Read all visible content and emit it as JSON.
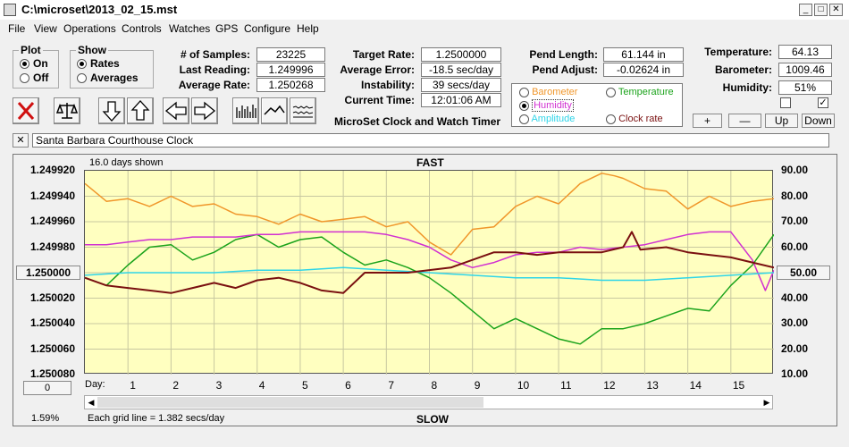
{
  "window": {
    "title": "C:\\microset\\2013_02_15.mst",
    "controls": {
      "minimize": "_",
      "maximize": "□",
      "close": "✕"
    }
  },
  "menu": [
    "File",
    "View",
    "Operations",
    "Controls",
    "Watches",
    "GPS",
    "Configure",
    "Help"
  ],
  "plot_group": {
    "title": "Plot",
    "options": [
      "On",
      "Off"
    ],
    "selected": "On"
  },
  "show_group": {
    "title": "Show",
    "options": [
      "Rates",
      "Averages"
    ],
    "selected": "Rates"
  },
  "stats": {
    "samples_label": "# of Samples:",
    "samples": "23225",
    "last_label": "Last Reading:",
    "last": "1.249996",
    "avg_label": "Average Rate:",
    "avg": "1.250268",
    "target_label": "Target Rate:",
    "target": "1.2500000",
    "err_label": "Average Error:",
    "err": "-18.5 sec/day",
    "inst_label": "Instability:",
    "inst": "39 secs/day",
    "time_label": "Current Time:",
    "time": "12:01:06 AM",
    "pendlen_label": "Pend Length:",
    "pendlen": "61.144 in",
    "pendadj_label": "Pend Adjust:",
    "pendadj": "-0.02624 in",
    "temp_label": "Temperature:",
    "temp": "64.13",
    "baro_label": "Barometer:",
    "baro": "1009.46",
    "hum_label": "Humidity:",
    "hum": "51%"
  },
  "app_caption": "MicroSet Clock and Watch Timer",
  "sensors": [
    {
      "name": "Barometer",
      "color": "#f0962a",
      "selected": false
    },
    {
      "name": "Temperature",
      "color": "#1ba31b",
      "selected": false
    },
    {
      "name": "Humidity",
      "color": "#d130d1",
      "selected": true
    },
    {
      "name": "Amplitude",
      "color": "#2fd5e8",
      "selected": false
    },
    {
      "name": "Clock rate",
      "color": "#7a1010",
      "selected": false
    }
  ],
  "sensor_buttons": {
    "plus": "+",
    "minus": "—",
    "up": "Up",
    "down": "Down"
  },
  "clock_name": "Santa Barbara Courthouse Clock",
  "chart_header": {
    "days_shown": "16.0 days shown",
    "fast": "FAST",
    "slow": "SLOW",
    "center_left": "1.250000",
    "center_right": "50.00",
    "left_bottom_btn": "0",
    "percent": "1.59%",
    "grid_note": "Each grid line = 1.382 secs/day",
    "day_label": "Day:"
  },
  "chart_data": {
    "type": "line",
    "x_range": [
      0,
      16
    ],
    "x_ticks": [
      "1",
      "2",
      "3",
      "4",
      "5",
      "6",
      "7",
      "8",
      "9",
      "10",
      "11",
      "12",
      "13",
      "14",
      "15"
    ],
    "left_axis": {
      "ticks": [
        "1.249920",
        "1.249940",
        "1.249960",
        "1.249980",
        "1.250000",
        "1.250020",
        "1.250040",
        "1.250060",
        "1.250080"
      ],
      "range": [
        1.24992,
        1.25008
      ],
      "inverted": true
    },
    "right_axis": {
      "ticks": [
        "90.00",
        "80.00",
        "70.00",
        "60.00",
        "50.00",
        "40.00",
        "30.00",
        "20.00",
        "10.00"
      ],
      "range": [
        10,
        90
      ]
    },
    "series": [
      {
        "name": "Barometer",
        "color": "#f0962a",
        "axis": "right",
        "x": [
          0,
          0.5,
          1,
          1.5,
          2,
          2.5,
          3,
          3.5,
          4,
          4.5,
          5,
          5.5,
          6,
          6.5,
          7,
          7.5,
          8,
          8.5,
          9,
          9.5,
          10,
          10.5,
          11,
          11.5,
          12,
          12.3,
          12.5,
          13,
          13.5,
          14,
          14.5,
          15,
          15.5,
          16
        ],
        "y": [
          85,
          78,
          79,
          76,
          80,
          76,
          77,
          73,
          72,
          69,
          73,
          70,
          71,
          72,
          68,
          70,
          62,
          57,
          67,
          68,
          76,
          80,
          77,
          85,
          89,
          88,
          87,
          83,
          82,
          75,
          80,
          76,
          78,
          79
        ]
      },
      {
        "name": "Temperature",
        "color": "#1ba31b",
        "axis": "right",
        "x": [
          0,
          0.5,
          1,
          1.5,
          2,
          2.5,
          3,
          3.5,
          4,
          4.5,
          5,
          5.5,
          6,
          6.5,
          7,
          7.5,
          8,
          8.5,
          9,
          9.5,
          10,
          10.5,
          11,
          11.5,
          12,
          12.5,
          13,
          13.5,
          14,
          14.5,
          15,
          15.5,
          16
        ],
        "y": [
          48,
          45,
          53,
          60,
          61,
          55,
          58,
          63,
          65,
          60,
          63,
          64,
          58,
          53,
          55,
          52,
          48,
          42,
          35,
          28,
          32,
          28,
          24,
          22,
          28,
          28,
          30,
          33,
          36,
          35,
          45,
          53,
          65
        ]
      },
      {
        "name": "Humidity",
        "color": "#d130d1",
        "axis": "right",
        "x": [
          0,
          0.5,
          1,
          1.5,
          2,
          2.5,
          3,
          3.5,
          4,
          4.5,
          5,
          5.5,
          6,
          6.5,
          7,
          7.5,
          8,
          8.5,
          9,
          9.5,
          10,
          10.5,
          11,
          11.5,
          12,
          12.5,
          13,
          13.5,
          14,
          14.5,
          15,
          15.5,
          15.8,
          16
        ],
        "y": [
          61,
          61,
          62,
          63,
          63,
          64,
          64,
          64,
          65,
          65,
          66,
          66,
          66,
          66,
          65,
          63,
          60,
          55,
          52,
          54,
          57,
          58,
          58,
          60,
          59,
          60,
          61,
          63,
          65,
          66,
          66,
          55,
          43,
          51
        ]
      },
      {
        "name": "Amplitude",
        "color": "#2fd5e8",
        "axis": "right",
        "x": [
          0,
          1,
          2,
          3,
          4,
          5,
          6,
          7,
          8,
          9,
          10,
          11,
          12,
          13,
          14,
          15,
          16
        ],
        "y": [
          49,
          50,
          50,
          50,
          51,
          51,
          52,
          51,
          50,
          49,
          48,
          48,
          47,
          47,
          48,
          49,
          50
        ]
      },
      {
        "name": "Clock rate",
        "color": "#7a1010",
        "axis": "left",
        "x": [
          0,
          0.5,
          1,
          1.5,
          2,
          2.5,
          3,
          3.5,
          4,
          4.5,
          5,
          5.5,
          6,
          6.5,
          7,
          7.5,
          8,
          8.5,
          9,
          9.5,
          10,
          10.5,
          11,
          11.5,
          12,
          12.5,
          12.7,
          12.9,
          13.5,
          14,
          14.5,
          15,
          15.5,
          16
        ],
        "y": [
          1.250004,
          1.25001,
          1.250012,
          1.250014,
          1.250016,
          1.250012,
          1.250008,
          1.250012,
          1.250006,
          1.250004,
          1.250008,
          1.250014,
          1.250016,
          1.25,
          1.25,
          1.25,
          1.249998,
          1.249996,
          1.24999,
          1.249984,
          1.249984,
          1.249986,
          1.249984,
          1.249984,
          1.249984,
          1.24998,
          1.249968,
          1.249982,
          1.24998,
          1.249984,
          1.249986,
          1.249988,
          1.249992,
          1.249996
        ]
      }
    ],
    "grid": true
  }
}
